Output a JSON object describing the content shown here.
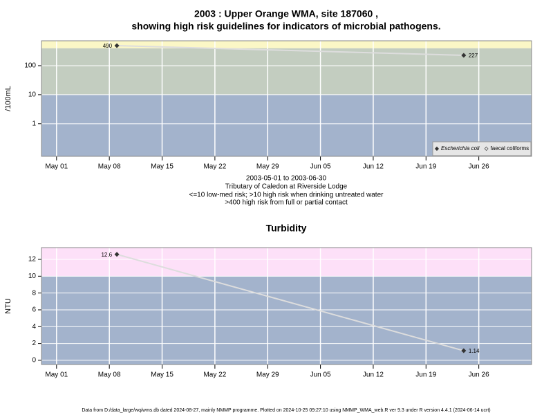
{
  "chart_data": [
    {
      "type": "line",
      "title": "2003 : Upper Orange WMA, site 187060 ,",
      "subtitle": "showing high risk guidelines for indicators of microbial pathogens.",
      "ylabel": "/100mL",
      "log_y": true,
      "x": [
        "2003-05-09",
        "2003-06-24"
      ],
      "xlim": [
        "2003-04-29",
        "2003-07-03"
      ],
      "xticks": [
        {
          "value": "2003-05-01",
          "label": "May 01"
        },
        {
          "value": "2003-05-08",
          "label": "May 08"
        },
        {
          "value": "2003-05-15",
          "label": "May 15"
        },
        {
          "value": "2003-05-22",
          "label": "May 22"
        },
        {
          "value": "2003-05-29",
          "label": "May 29"
        },
        {
          "value": "2003-06-05",
          "label": "Jun 05"
        },
        {
          "value": "2003-06-12",
          "label": "Jun 12"
        },
        {
          "value": "2003-06-19",
          "label": "Jun 19"
        },
        {
          "value": "2003-06-26",
          "label": "Jun 26"
        }
      ],
      "ylim": [
        0.075,
        720
      ],
      "yticks": [
        1,
        10,
        100
      ],
      "thresholds": [
        10,
        400
      ],
      "band_colors": [
        "#a3b3cc",
        "#c3cdc0",
        "#fbf7c6"
      ],
      "grid": true,
      "legend": "bottom-right",
      "series": [
        {
          "name": "Escherichia coli",
          "color": "#333333",
          "line_color": "#dddddd",
          "values": [
            490,
            227
          ]
        },
        {
          "name": "faecal coliforms",
          "color": "#555555",
          "line_color": "#dddddd",
          "values": [
            null,
            null
          ]
        }
      ],
      "notes": [
        "2003-05-01 to 2003-06-30",
        "Tributary of Caledon at Riverside Lodge",
        "<=10 low-med risk; >10 high risk when drinking untreated water",
        ">400 high risk from full or partial contact"
      ]
    },
    {
      "type": "line",
      "title": "Turbidity",
      "ylabel": "NTU",
      "log_y": false,
      "x": [
        "2003-05-09",
        "2003-06-24"
      ],
      "xlim": [
        "2003-04-29",
        "2003-07-03"
      ],
      "xticks": [
        {
          "value": "2003-05-01",
          "label": "May 01"
        },
        {
          "value": "2003-05-08",
          "label": "May 08"
        },
        {
          "value": "2003-05-15",
          "label": "May 15"
        },
        {
          "value": "2003-05-22",
          "label": "May 22"
        },
        {
          "value": "2003-05-29",
          "label": "May 29"
        },
        {
          "value": "2003-06-05",
          "label": "Jun 05"
        },
        {
          "value": "2003-06-12",
          "label": "Jun 12"
        },
        {
          "value": "2003-06-19",
          "label": "Jun 19"
        },
        {
          "value": "2003-06-26",
          "label": "Jun 26"
        }
      ],
      "ylim": [
        -0.5,
        13.4
      ],
      "yticks": [
        0,
        2,
        4,
        6,
        8,
        10,
        12
      ],
      "thresholds": [
        10
      ],
      "band_colors": [
        "#a3b3cc",
        "#fde0f8"
      ],
      "grid": true,
      "series": [
        {
          "name": "Turbidity",
          "color": "#333333",
          "line_color": "#dddddd",
          "values": [
            12.6,
            1.14
          ]
        }
      ]
    }
  ],
  "footer": "Data from D:/data_large/wq/wms.db dated 2024-08-27, mainly NMMP programme. Plotted on 2024-10-25 09:27:10 using NMMP_WMA_web.R ver 9.3 under R version 4.4.1 (2024-06-14 ucrt)"
}
